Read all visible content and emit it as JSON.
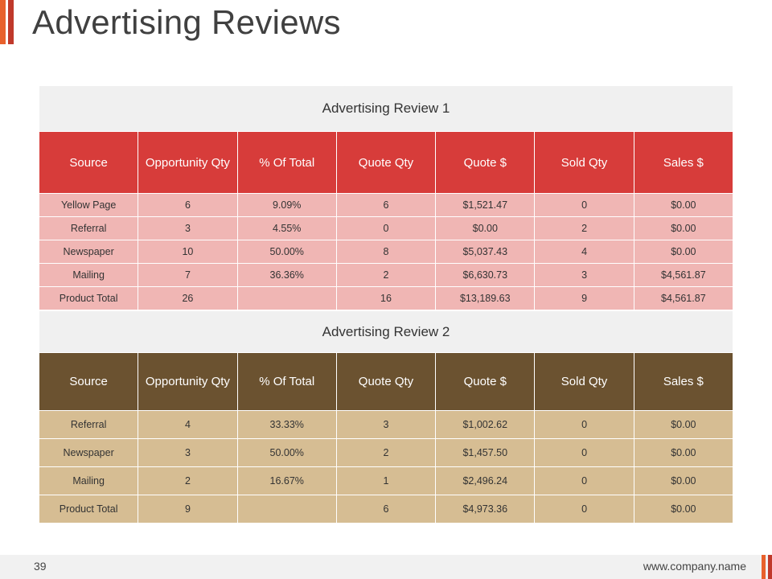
{
  "title": "Advertising Reviews",
  "colors": {
    "accent_orange": "#e8612c",
    "accent_red": "#c0392b",
    "review1_header": "#d73c3a",
    "review1_rows": "#f0b6b4",
    "review2_header": "#6b5230",
    "review2_rows": "#d6bd93",
    "caption_bg": "#f0f0f0"
  },
  "columns": [
    "Source",
    "Opportunity Qty",
    "% Of Total",
    "Quote Qty",
    "Quote $",
    "Sold Qty",
    "Sales $"
  ],
  "review1": {
    "caption": "Advertising Review 1",
    "rows": [
      [
        "Yellow Page",
        "6",
        "9.09%",
        "6",
        "$1,521.47",
        "0",
        "$0.00"
      ],
      [
        "Referral",
        "3",
        "4.55%",
        "0",
        "$0.00",
        "2",
        "$0.00"
      ],
      [
        "Newspaper",
        "10",
        "50.00%",
        "8",
        "$5,037.43",
        "4",
        "$0.00"
      ],
      [
        "Mailing",
        "7",
        "36.36%",
        "2",
        "$6,630.73",
        "3",
        "$4,561.87"
      ],
      [
        "Product Total",
        "26",
        "",
        "16",
        "$13,189.63",
        "9",
        "$4,561.87"
      ]
    ]
  },
  "review2": {
    "caption": "Advertising Review 2",
    "rows": [
      [
        "Referral",
        "4",
        "33.33%",
        "3",
        "$1,002.62",
        "0",
        "$0.00"
      ],
      [
        "Newspaper",
        "3",
        "50.00%",
        "2",
        "$1,457.50",
        "0",
        "$0.00"
      ],
      [
        "Mailing",
        "2",
        "16.67%",
        "1",
        "$2,496.24",
        "0",
        "$0.00"
      ],
      [
        "Product Total",
        "9",
        "",
        "6",
        "$4,973.36",
        "0",
        "$0.00"
      ]
    ]
  },
  "footer": {
    "page_number": "39",
    "url": "www.company.name"
  }
}
